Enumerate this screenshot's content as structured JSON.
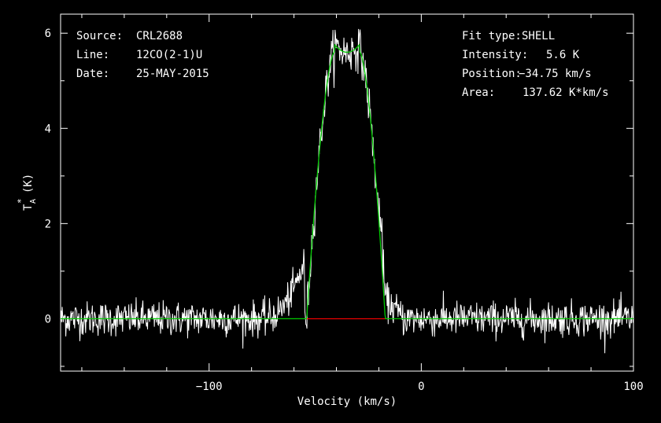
{
  "header": {
    "left": [
      {
        "label": "Source:",
        "value": "CRL2688"
      },
      {
        "label": "Line:",
        "value": "12CO(2-1)U"
      },
      {
        "label": "Date:",
        "value": "25-MAY-2015"
      }
    ],
    "right": [
      {
        "label": "Fit type:",
        "value": "SHELL"
      },
      {
        "label": "Intensity:",
        "value": "5.6 K"
      },
      {
        "label": "Position:",
        "value": "−34.75 km/s"
      },
      {
        "label": "Area:",
        "value": "137.62 K*km/s"
      }
    ]
  },
  "chart_data": {
    "type": "line",
    "xlabel": "Velocity (km/s)",
    "ylabel_main": "T",
    "ylabel_sub": "A",
    "ylabel_sup": "*",
    "ylabel_unit": "(K)",
    "xlim": [
      -170,
      100
    ],
    "ylim": [
      -1.1,
      6.4
    ],
    "x_ticks": [
      {
        "value": -100,
        "label": "−100"
      },
      {
        "value": 0,
        "label": "0"
      },
      {
        "value": 100,
        "label": "100"
      }
    ],
    "y_ticks": [
      {
        "value": 0,
        "label": "0"
      },
      {
        "value": 2,
        "label": "2"
      },
      {
        "value": 4,
        "label": "4"
      },
      {
        "value": 6,
        "label": "6"
      }
    ],
    "grid": false,
    "colors": {
      "spectrum": "#ffffff",
      "fit": "#00cc00",
      "baseline": "#ff0000",
      "axes": "#ffffff"
    },
    "spectrum": {
      "x_start": -170,
      "x_end": 100,
      "noise_rms": 0.18,
      "peak_noise_rms": 0.22,
      "wing": {
        "center": -57,
        "left": -75,
        "right": -55,
        "height": 1.2
      },
      "red_wing": {
        "left": -20,
        "right": -8,
        "height": 0.55
      }
    },
    "fit": {
      "type": "SHELL",
      "center": -34.75,
      "peak": 5.6,
      "zero_left": -54,
      "zero_right": -17,
      "top_left": -41,
      "top_right": -29,
      "baseline": 0
    },
    "baseline_segment": {
      "x": [
        -54,
        -17
      ],
      "y": 0
    }
  }
}
